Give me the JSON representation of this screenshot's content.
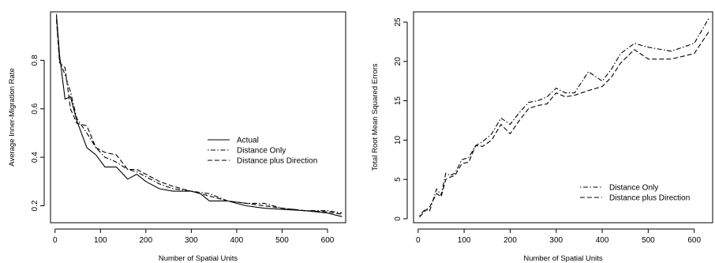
{
  "chart_data": [
    {
      "type": "line",
      "xlabel": "Number of Spatial Units",
      "ylabel": "Average Inner-Migration Rate",
      "xlim": [
        -10,
        640
      ],
      "ylim": [
        0.13,
        1.0
      ],
      "xticks": [
        0,
        100,
        200,
        300,
        400,
        500,
        600
      ],
      "yticks": [
        0.2,
        0.4,
        0.6,
        0.8
      ],
      "legend_position": "right",
      "series": [
        {
          "name": "Actual",
          "style": "solid",
          "x": [
            3,
            10,
            22,
            34,
            48,
            70,
            90,
            110,
            135,
            160,
            180,
            200,
            230,
            260,
            300,
            320,
            340,
            380,
            420,
            460,
            500,
            550,
            600,
            632
          ],
          "y": [
            0.99,
            0.82,
            0.64,
            0.65,
            0.55,
            0.44,
            0.41,
            0.36,
            0.36,
            0.31,
            0.33,
            0.3,
            0.27,
            0.26,
            0.26,
            0.25,
            0.22,
            0.22,
            0.2,
            0.19,
            0.185,
            0.18,
            0.17,
            0.155
          ]
        },
        {
          "name": "Distance Only",
          "style": "dotdash",
          "x": [
            3,
            10,
            22,
            34,
            48,
            70,
            90,
            110,
            135,
            160,
            180,
            200,
            230,
            260,
            300,
            340,
            380,
            420,
            460,
            500,
            550,
            600,
            632
          ],
          "y": [
            0.98,
            0.8,
            0.74,
            0.67,
            0.56,
            0.5,
            0.44,
            0.4,
            0.38,
            0.35,
            0.34,
            0.32,
            0.29,
            0.27,
            0.26,
            0.25,
            0.22,
            0.21,
            0.21,
            0.19,
            0.18,
            0.18,
            0.17
          ]
        },
        {
          "name": "Distance plus Direction",
          "style": "dashed",
          "x": [
            3,
            10,
            22,
            34,
            48,
            70,
            90,
            110,
            135,
            160,
            180,
            200,
            230,
            260,
            300,
            340,
            380,
            420,
            460,
            500,
            550,
            600,
            632
          ],
          "y": [
            0.97,
            0.79,
            0.77,
            0.6,
            0.54,
            0.53,
            0.44,
            0.42,
            0.41,
            0.35,
            0.35,
            0.33,
            0.3,
            0.28,
            0.26,
            0.24,
            0.22,
            0.21,
            0.2,
            0.19,
            0.18,
            0.175,
            0.165
          ]
        }
      ]
    },
    {
      "type": "line",
      "xlabel": "Number of Spatial Units",
      "ylabel": "Total Root Mean Squared Errors",
      "xlim": [
        -10,
        640
      ],
      "ylim": [
        -0.5,
        26.3
      ],
      "xticks": [
        0,
        100,
        200,
        300,
        400,
        500,
        600
      ],
      "yticks": [
        0,
        5,
        10,
        15,
        20,
        25
      ],
      "legend_position": "bottom-right",
      "series": [
        {
          "name": "Distance Only",
          "style": "dotdash",
          "x": [
            3,
            15,
            25,
            40,
            50,
            60,
            70,
            80,
            95,
            110,
            125,
            140,
            160,
            180,
            200,
            220,
            240,
            260,
            280,
            300,
            320,
            340,
            370,
            400,
            420,
            440,
            470,
            500,
            550,
            600,
            632
          ],
          "y": [
            0.4,
            1.2,
            1.0,
            3.8,
            3.0,
            5.8,
            5.5,
            5.8,
            7.5,
            7.8,
            9.3,
            9.8,
            10.8,
            12.8,
            12.0,
            13.5,
            14.8,
            15.0,
            15.5,
            16.6,
            16.0,
            16.0,
            18.7,
            17.5,
            19.0,
            21.0,
            22.3,
            21.8,
            21.3,
            22.3,
            25.5
          ]
        },
        {
          "name": "Distance plus Direction",
          "style": "dashed",
          "x": [
            3,
            15,
            25,
            40,
            50,
            60,
            70,
            80,
            95,
            110,
            125,
            140,
            160,
            180,
            200,
            220,
            240,
            260,
            280,
            300,
            320,
            340,
            370,
            400,
            420,
            440,
            470,
            500,
            550,
            600,
            632
          ],
          "y": [
            0.2,
            1.0,
            1.5,
            3.2,
            2.8,
            5.0,
            5.3,
            5.5,
            7.0,
            7.2,
            9.3,
            9.2,
            10.0,
            12.0,
            10.8,
            12.5,
            14.0,
            14.4,
            14.6,
            16.0,
            15.5,
            15.7,
            16.3,
            16.8,
            18.0,
            19.8,
            21.5,
            20.3,
            20.3,
            21.0,
            23.8
          ]
        }
      ]
    }
  ]
}
